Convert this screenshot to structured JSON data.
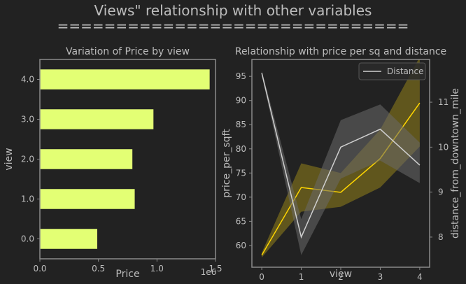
{
  "figure": {
    "title": "Views\" relationship with other variables",
    "title_underline": "=============================="
  },
  "colors": {
    "background": "#222222",
    "spine": "#8a8a8a",
    "text": "#bdbdbd",
    "bar": "#e3ff74",
    "price_line": "#ffd600",
    "price_band": "#8a7a1a",
    "distance_line": "#cfcfcf",
    "distance_band": "#6a6a6a"
  },
  "chart_data": [
    {
      "type": "bar",
      "orientation": "horizontal",
      "title": "Variation of Price by view",
      "xlabel": "Price",
      "ylabel": "view",
      "x_offset_text": "1e6",
      "categories": [
        "0.0",
        "1.0",
        "2.0",
        "3.0",
        "4.0"
      ],
      "values": [
        0.49,
        0.81,
        0.79,
        0.97,
        1.45
      ],
      "xlim": [
        0,
        1.5
      ],
      "xticks": [
        "0.0",
        "0.5",
        "1.0",
        "1.5"
      ],
      "grid": false
    },
    {
      "type": "line",
      "title": "Relationship with price per sq and distance",
      "xlabel": "view",
      "ylabel": "price_per_sqft",
      "y2label": "distance_from_downtown_mile",
      "x": [
        0,
        1,
        2,
        3,
        4
      ],
      "xlim": [
        -0.25,
        4.25
      ],
      "ylim": [
        55.5,
        98.5
      ],
      "y2lim": [
        7.33,
        11.95
      ],
      "yticks": [
        60,
        65,
        70,
        75,
        80,
        85,
        90,
        95
      ],
      "y2ticks": [
        8,
        9,
        10,
        11
      ],
      "legend_position": "top-right",
      "series": [
        {
          "axis": "left",
          "values": [
            58.0,
            72.0,
            71.0,
            78.0,
            89.5
          ],
          "ci_low": [
            57.5,
            67.0,
            68.0,
            72.0,
            80.5
          ],
          "ci_high": [
            58.5,
            77.0,
            75.0,
            84.0,
            99.0
          ]
        },
        {
          "name": "Distance",
          "axis": "right",
          "values": [
            11.65,
            8.0,
            10.0,
            10.4,
            9.6
          ],
          "ci_low": [
            11.6,
            7.6,
            9.3,
            9.7,
            9.2
          ],
          "ci_high": [
            11.7,
            8.4,
            10.6,
            10.95,
            10.1
          ]
        }
      ]
    }
  ]
}
